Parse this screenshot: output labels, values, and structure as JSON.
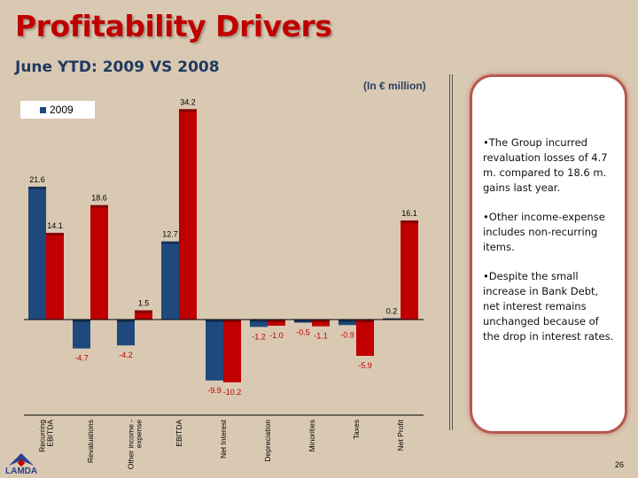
{
  "title": "Profitability Drivers",
  "subtitle": "June YTD: 2009 VS 2008",
  "unit_note": "(In € million)",
  "panel": {
    "bullets": [
      "•The Group incurred revaluation losses of 4.7 m. compared to 18.6 m. gains last year.",
      "•Other income-expense includes non-recurring items.",
      "•Despite the small increase in Bank Debt, net interest remains unchanged because of the drop in interest rates."
    ]
  },
  "page_number": "26",
  "logo_text": "LAMDA",
  "chart_data": {
    "type": "bar",
    "categories": [
      "Recurring EBITDA",
      "Revaluations",
      "Other income - expense",
      "EBITDA",
      "Net Interest",
      "Depreciation",
      "Minorities",
      "Taxes",
      "Net Profit"
    ],
    "series": [
      {
        "name": "2009",
        "color": "#1f497d",
        "values": [
          21.6,
          -4.7,
          -4.2,
          12.7,
          -9.9,
          -1.2,
          -0.5,
          -0.9,
          0.2
        ]
      },
      {
        "color": "#c00000",
        "values": [
          14.1,
          18.6,
          1.5,
          34.2,
          -10.2,
          -1.0,
          -1.1,
          -5.9,
          16.1
        ]
      }
    ],
    "legend": {
      "entries": [
        "2009"
      ],
      "placement": "top-left"
    },
    "ylim": [
      -12,
      35
    ],
    "grid": false,
    "colors": {
      "positive_label": "#000000",
      "negative_label": "#c00000"
    }
  }
}
